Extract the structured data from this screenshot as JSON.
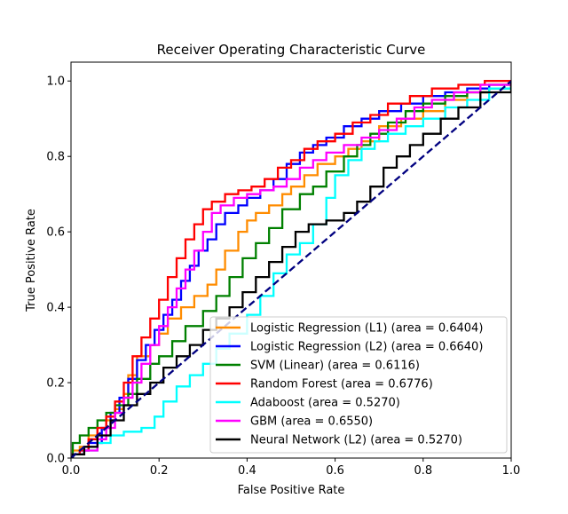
{
  "chart_data": {
    "type": "line",
    "title": "Receiver Operating Characteristic Curve",
    "xlabel": "False Positive Rate",
    "ylabel": "True Positive Rate",
    "xlim": [
      0,
      1
    ],
    "ylim": [
      0,
      1.05
    ],
    "xticks": [
      "0.0",
      "0.2",
      "0.4",
      "0.6",
      "0.8",
      "1.0"
    ],
    "yticks": [
      "0.0",
      "0.2",
      "0.4",
      "0.6",
      "0.8",
      "1.0"
    ],
    "grid": false,
    "legend_position": "lower-right",
    "reference_line": {
      "color": "#000080",
      "style": "dashed",
      "points": [
        [
          0,
          0
        ],
        [
          1,
          1
        ]
      ]
    },
    "series": [
      {
        "name": "Logistic Regression (L1) (area = 0.6404)",
        "color": "#ff8c00",
        "points": [
          [
            0,
            0
          ],
          [
            0.004,
            0.02
          ],
          [
            0.02,
            0.03
          ],
          [
            0.04,
            0.06
          ],
          [
            0.06,
            0.08
          ],
          [
            0.08,
            0.1
          ],
          [
            0.1,
            0.13
          ],
          [
            0.12,
            0.17
          ],
          [
            0.13,
            0.22
          ],
          [
            0.15,
            0.27
          ],
          [
            0.18,
            0.3
          ],
          [
            0.2,
            0.33
          ],
          [
            0.22,
            0.37
          ],
          [
            0.25,
            0.4
          ],
          [
            0.28,
            0.43
          ],
          [
            0.31,
            0.46
          ],
          [
            0.33,
            0.5
          ],
          [
            0.35,
            0.55
          ],
          [
            0.38,
            0.6
          ],
          [
            0.4,
            0.63
          ],
          [
            0.42,
            0.65
          ],
          [
            0.45,
            0.67
          ],
          [
            0.48,
            0.7
          ],
          [
            0.5,
            0.72
          ],
          [
            0.53,
            0.75
          ],
          [
            0.56,
            0.78
          ],
          [
            0.6,
            0.8
          ],
          [
            0.63,
            0.82
          ],
          [
            0.66,
            0.84
          ],
          [
            0.7,
            0.88
          ],
          [
            0.75,
            0.9
          ],
          [
            0.8,
            0.92
          ],
          [
            0.85,
            0.95
          ],
          [
            0.9,
            0.97
          ],
          [
            0.95,
            0.99
          ],
          [
            1,
            1
          ]
        ]
      },
      {
        "name": "Logistic Regression (L2) (area = 0.6640)",
        "color": "#0000ff",
        "points": [
          [
            0,
            0
          ],
          [
            0.004,
            0.01
          ],
          [
            0.02,
            0.02
          ],
          [
            0.04,
            0.04
          ],
          [
            0.07,
            0.08
          ],
          [
            0.09,
            0.12
          ],
          [
            0.11,
            0.16
          ],
          [
            0.13,
            0.21
          ],
          [
            0.15,
            0.26
          ],
          [
            0.17,
            0.3
          ],
          [
            0.19,
            0.34
          ],
          [
            0.21,
            0.38
          ],
          [
            0.23,
            0.42
          ],
          [
            0.25,
            0.47
          ],
          [
            0.27,
            0.51
          ],
          [
            0.29,
            0.55
          ],
          [
            0.31,
            0.58
          ],
          [
            0.33,
            0.62
          ],
          [
            0.35,
            0.65
          ],
          [
            0.38,
            0.67
          ],
          [
            0.4,
            0.69
          ],
          [
            0.43,
            0.71
          ],
          [
            0.46,
            0.74
          ],
          [
            0.49,
            0.78
          ],
          [
            0.52,
            0.81
          ],
          [
            0.55,
            0.83
          ],
          [
            0.58,
            0.85
          ],
          [
            0.62,
            0.88
          ],
          [
            0.66,
            0.9
          ],
          [
            0.7,
            0.92
          ],
          [
            0.75,
            0.94
          ],
          [
            0.8,
            0.96
          ],
          [
            0.85,
            0.97
          ],
          [
            0.9,
            0.98
          ],
          [
            0.95,
            0.99
          ],
          [
            1,
            1
          ]
        ]
      },
      {
        "name": "SVM (Linear) (area = 0.6116)",
        "color": "#008000",
        "points": [
          [
            0,
            0
          ],
          [
            0.004,
            0.04
          ],
          [
            0.02,
            0.06
          ],
          [
            0.04,
            0.08
          ],
          [
            0.06,
            0.1
          ],
          [
            0.08,
            0.12
          ],
          [
            0.1,
            0.14
          ],
          [
            0.13,
            0.17
          ],
          [
            0.15,
            0.21
          ],
          [
            0.18,
            0.25
          ],
          [
            0.2,
            0.27
          ],
          [
            0.23,
            0.31
          ],
          [
            0.26,
            0.35
          ],
          [
            0.3,
            0.39
          ],
          [
            0.33,
            0.43
          ],
          [
            0.36,
            0.48
          ],
          [
            0.39,
            0.53
          ],
          [
            0.42,
            0.57
          ],
          [
            0.45,
            0.61
          ],
          [
            0.48,
            0.66
          ],
          [
            0.52,
            0.7
          ],
          [
            0.55,
            0.72
          ],
          [
            0.58,
            0.76
          ],
          [
            0.62,
            0.8
          ],
          [
            0.65,
            0.83
          ],
          [
            0.68,
            0.86
          ],
          [
            0.72,
            0.89
          ],
          [
            0.76,
            0.92
          ],
          [
            0.8,
            0.94
          ],
          [
            0.85,
            0.96
          ],
          [
            0.9,
            0.97
          ],
          [
            0.95,
            0.98
          ],
          [
            1,
            1
          ]
        ]
      },
      {
        "name": "Random Forest (area = 0.6776)",
        "color": "#ff0000",
        "points": [
          [
            0,
            0
          ],
          [
            0.004,
            0.01
          ],
          [
            0.02,
            0.02
          ],
          [
            0.04,
            0.05
          ],
          [
            0.06,
            0.08
          ],
          [
            0.08,
            0.11
          ],
          [
            0.1,
            0.15
          ],
          [
            0.12,
            0.2
          ],
          [
            0.14,
            0.27
          ],
          [
            0.16,
            0.32
          ],
          [
            0.18,
            0.37
          ],
          [
            0.2,
            0.42
          ],
          [
            0.22,
            0.48
          ],
          [
            0.24,
            0.53
          ],
          [
            0.26,
            0.58
          ],
          [
            0.28,
            0.62
          ],
          [
            0.3,
            0.66
          ],
          [
            0.32,
            0.68
          ],
          [
            0.35,
            0.7
          ],
          [
            0.38,
            0.71
          ],
          [
            0.41,
            0.72
          ],
          [
            0.44,
            0.74
          ],
          [
            0.47,
            0.77
          ],
          [
            0.5,
            0.79
          ],
          [
            0.53,
            0.82
          ],
          [
            0.56,
            0.84
          ],
          [
            0.6,
            0.86
          ],
          [
            0.64,
            0.89
          ],
          [
            0.68,
            0.91
          ],
          [
            0.72,
            0.94
          ],
          [
            0.77,
            0.96
          ],
          [
            0.82,
            0.98
          ],
          [
            0.88,
            0.99
          ],
          [
            0.94,
            1
          ],
          [
            1,
            1
          ]
        ]
      },
      {
        "name": "Adaboost (area = 0.5270)",
        "color": "#00ffff",
        "points": [
          [
            0,
            0
          ],
          [
            0.004,
            0.01
          ],
          [
            0.03,
            0.02
          ],
          [
            0.06,
            0.04
          ],
          [
            0.09,
            0.06
          ],
          [
            0.12,
            0.07
          ],
          [
            0.16,
            0.08
          ],
          [
            0.19,
            0.11
          ],
          [
            0.21,
            0.15
          ],
          [
            0.24,
            0.19
          ],
          [
            0.27,
            0.22
          ],
          [
            0.3,
            0.25
          ],
          [
            0.33,
            0.29
          ],
          [
            0.36,
            0.33
          ],
          [
            0.4,
            0.38
          ],
          [
            0.43,
            0.43
          ],
          [
            0.46,
            0.49
          ],
          [
            0.49,
            0.54
          ],
          [
            0.52,
            0.57
          ],
          [
            0.55,
            0.62
          ],
          [
            0.58,
            0.69
          ],
          [
            0.6,
            0.75
          ],
          [
            0.63,
            0.79
          ],
          [
            0.66,
            0.82
          ],
          [
            0.69,
            0.84
          ],
          [
            0.72,
            0.86
          ],
          [
            0.76,
            0.88
          ],
          [
            0.8,
            0.9
          ],
          [
            0.85,
            0.93
          ],
          [
            0.9,
            0.95
          ],
          [
            0.95,
            0.98
          ],
          [
            1,
            1
          ]
        ]
      },
      {
        "name": "GBM (area = 0.6550)",
        "color": "#ff00ff",
        "points": [
          [
            0,
            0
          ],
          [
            0.004,
            0.01
          ],
          [
            0.03,
            0.02
          ],
          [
            0.06,
            0.05
          ],
          [
            0.08,
            0.08
          ],
          [
            0.1,
            0.12
          ],
          [
            0.12,
            0.16
          ],
          [
            0.14,
            0.2
          ],
          [
            0.16,
            0.25
          ],
          [
            0.18,
            0.3
          ],
          [
            0.2,
            0.35
          ],
          [
            0.22,
            0.4
          ],
          [
            0.24,
            0.45
          ],
          [
            0.26,
            0.5
          ],
          [
            0.28,
            0.55
          ],
          [
            0.3,
            0.6
          ],
          [
            0.32,
            0.65
          ],
          [
            0.34,
            0.67
          ],
          [
            0.37,
            0.69
          ],
          [
            0.4,
            0.7
          ],
          [
            0.43,
            0.71
          ],
          [
            0.46,
            0.72
          ],
          [
            0.49,
            0.74
          ],
          [
            0.52,
            0.77
          ],
          [
            0.55,
            0.79
          ],
          [
            0.58,
            0.81
          ],
          [
            0.62,
            0.83
          ],
          [
            0.66,
            0.85
          ],
          [
            0.7,
            0.87
          ],
          [
            0.74,
            0.9
          ],
          [
            0.78,
            0.93
          ],
          [
            0.82,
            0.95
          ],
          [
            0.87,
            0.97
          ],
          [
            0.93,
            0.99
          ],
          [
            1,
            1
          ]
        ]
      },
      {
        "name": "Neural Network (L2) (area = 0.5270)",
        "color": "#000000",
        "points": [
          [
            0,
            0
          ],
          [
            0.004,
            0.01
          ],
          [
            0.03,
            0.03
          ],
          [
            0.06,
            0.06
          ],
          [
            0.09,
            0.1
          ],
          [
            0.12,
            0.14
          ],
          [
            0.15,
            0.17
          ],
          [
            0.18,
            0.2
          ],
          [
            0.21,
            0.24
          ],
          [
            0.24,
            0.27
          ],
          [
            0.27,
            0.3
          ],
          [
            0.3,
            0.34
          ],
          [
            0.33,
            0.37
          ],
          [
            0.36,
            0.4
          ],
          [
            0.39,
            0.44
          ],
          [
            0.42,
            0.48
          ],
          [
            0.45,
            0.52
          ],
          [
            0.48,
            0.56
          ],
          [
            0.51,
            0.6
          ],
          [
            0.54,
            0.62
          ],
          [
            0.58,
            0.63
          ],
          [
            0.62,
            0.65
          ],
          [
            0.65,
            0.68
          ],
          [
            0.68,
            0.72
          ],
          [
            0.71,
            0.77
          ],
          [
            0.74,
            0.8
          ],
          [
            0.77,
            0.83
          ],
          [
            0.8,
            0.86
          ],
          [
            0.84,
            0.9
          ],
          [
            0.88,
            0.93
          ],
          [
            0.93,
            0.97
          ],
          [
            1,
            1
          ]
        ]
      }
    ]
  }
}
